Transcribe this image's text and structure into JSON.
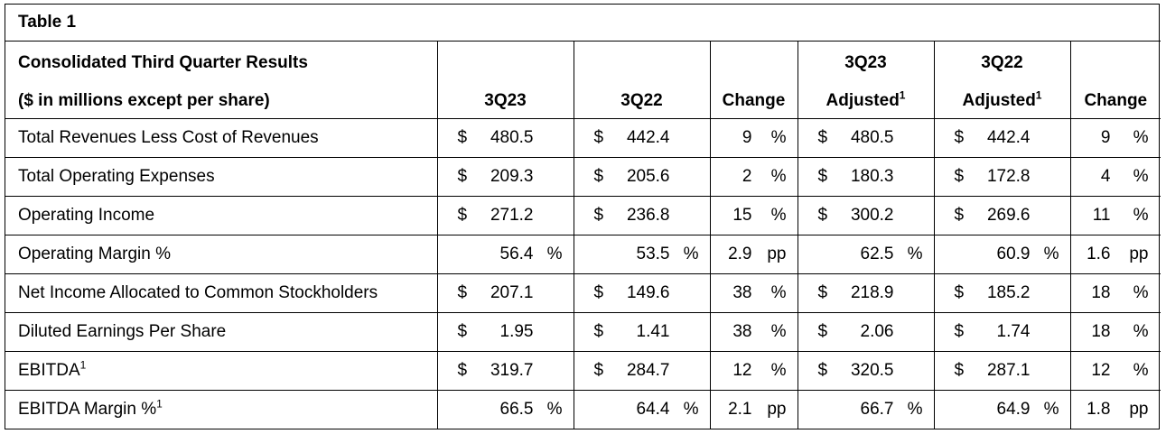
{
  "table_title": "Table 1",
  "header": {
    "row1_label": "Consolidated Third Quarter Results",
    "row2_label": "($ in millions except per share)",
    "col_3q23": "3Q23",
    "col_3q22": "3Q22",
    "col_change": "Change",
    "col_3q23_adj_top": "3Q23",
    "col_3q23_adj_bottom": "Adjusted",
    "col_3q22_adj_top": "3Q22",
    "col_3q22_adj_bottom": "Adjusted",
    "col_change2": "Change",
    "footnote_mark": "1"
  },
  "rows": [
    {
      "label": "Total Revenues Less Cost of Revenues",
      "sup": "",
      "a": {
        "cur": "$",
        "v": "480.5",
        "u": ""
      },
      "b": {
        "cur": "$",
        "v": "442.4",
        "u": ""
      },
      "c": {
        "v": "9",
        "u": "%"
      },
      "d": {
        "cur": "$",
        "v": "480.5",
        "u": ""
      },
      "e": {
        "cur": "$",
        "v": "442.4",
        "u": ""
      },
      "f": {
        "v": "9",
        "u": "%"
      }
    },
    {
      "label": "Total Operating Expenses",
      "sup": "",
      "a": {
        "cur": "$",
        "v": "209.3",
        "u": ""
      },
      "b": {
        "cur": "$",
        "v": "205.6",
        "u": ""
      },
      "c": {
        "v": "2",
        "u": "%"
      },
      "d": {
        "cur": "$",
        "v": "180.3",
        "u": ""
      },
      "e": {
        "cur": "$",
        "v": "172.8",
        "u": ""
      },
      "f": {
        "v": "4",
        "u": "%"
      }
    },
    {
      "label": "Operating Income",
      "sup": "",
      "a": {
        "cur": "$",
        "v": "271.2",
        "u": ""
      },
      "b": {
        "cur": "$",
        "v": "236.8",
        "u": ""
      },
      "c": {
        "v": "15",
        "u": "%"
      },
      "d": {
        "cur": "$",
        "v": "300.2",
        "u": ""
      },
      "e": {
        "cur": "$",
        "v": "269.6",
        "u": ""
      },
      "f": {
        "v": "11",
        "u": "%"
      }
    },
    {
      "label": "Operating Margin %",
      "sup": "",
      "a": {
        "cur": "",
        "v": "56.4",
        "u": "%"
      },
      "b": {
        "cur": "",
        "v": "53.5",
        "u": "%"
      },
      "c": {
        "v": "2.9",
        "u": "pp"
      },
      "d": {
        "cur": "",
        "v": "62.5",
        "u": "%"
      },
      "e": {
        "cur": "",
        "v": "60.9",
        "u": "%"
      },
      "f": {
        "v": "1.6",
        "u": "pp"
      }
    },
    {
      "label": "Net Income Allocated to Common Stockholders",
      "sup": "",
      "a": {
        "cur": "$",
        "v": "207.1",
        "u": ""
      },
      "b": {
        "cur": "$",
        "v": "149.6",
        "u": ""
      },
      "c": {
        "v": "38",
        "u": "%"
      },
      "d": {
        "cur": "$",
        "v": "218.9",
        "u": ""
      },
      "e": {
        "cur": "$",
        "v": "185.2",
        "u": ""
      },
      "f": {
        "v": "18",
        "u": "%"
      }
    },
    {
      "label": "Diluted Earnings Per Share",
      "sup": "",
      "a": {
        "cur": "$",
        "v": "1.95",
        "u": ""
      },
      "b": {
        "cur": "$",
        "v": "1.41",
        "u": ""
      },
      "c": {
        "v": "38",
        "u": "%"
      },
      "d": {
        "cur": "$",
        "v": "2.06",
        "u": ""
      },
      "e": {
        "cur": "$",
        "v": "1.74",
        "u": ""
      },
      "f": {
        "v": "18",
        "u": "%"
      }
    },
    {
      "label": "EBITDA",
      "sup": "1",
      "a": {
        "cur": "$",
        "v": "319.7",
        "u": ""
      },
      "b": {
        "cur": "$",
        "v": "284.7",
        "u": ""
      },
      "c": {
        "v": "12",
        "u": "%"
      },
      "d": {
        "cur": "$",
        "v": "320.5",
        "u": ""
      },
      "e": {
        "cur": "$",
        "v": "287.1",
        "u": ""
      },
      "f": {
        "v": "12",
        "u": "%"
      }
    },
    {
      "label": "EBITDA Margin %",
      "sup": "1",
      "a": {
        "cur": "",
        "v": "66.5",
        "u": "%"
      },
      "b": {
        "cur": "",
        "v": "64.4",
        "u": "%"
      },
      "c": {
        "v": "2.1",
        "u": "pp"
      },
      "d": {
        "cur": "",
        "v": "66.7",
        "u": "%"
      },
      "e": {
        "cur": "",
        "v": "64.9",
        "u": "%"
      },
      "f": {
        "v": "1.8",
        "u": "pp"
      }
    }
  ]
}
